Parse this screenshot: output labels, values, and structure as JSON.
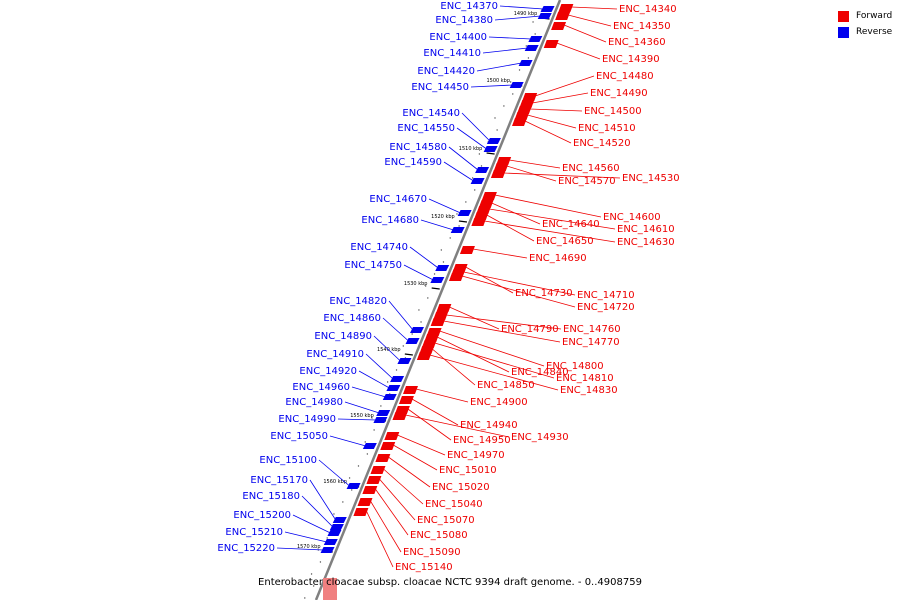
{
  "legend": {
    "forward": {
      "label": "Forward",
      "color": "#ee0000"
    },
    "reverse": {
      "label": "Reverse",
      "color": "#0000ee"
    }
  },
  "caption": "Enterobacter cloacae subsp. cloacae NCTC 9394 draft genome. - 0..4908759",
  "axis": {
    "unit": "kbp",
    "ticks": [
      "1490 kbp",
      "1500 kbp",
      "1510 kbp",
      "1520 kbp",
      "1530 kbp",
      "1540 kbp",
      "1550 kbp",
      "1560 kbp",
      "1570 kbp"
    ]
  },
  "reverse_genes": [
    "ENC_14370",
    "ENC_14380",
    "ENC_14400",
    "ENC_14410",
    "ENC_14420",
    "ENC_14450",
    "ENC_14540",
    "ENC_14550",
    "ENC_14580",
    "ENC_14590",
    "ENC_14670",
    "ENC_14680",
    "ENC_14740",
    "ENC_14750",
    "ENC_14820",
    "ENC_14860",
    "ENC_14890",
    "ENC_14910",
    "ENC_14920",
    "ENC_14960",
    "ENC_14980",
    "ENC_14990",
    "ENC_15050",
    "ENC_15100",
    "ENC_15170",
    "ENC_15180",
    "ENC_15200",
    "ENC_15210",
    "ENC_15220"
  ],
  "forward_genes": [
    "ENC_14340",
    "ENC_14350",
    "ENC_14360",
    "ENC_14390",
    "ENC_14480",
    "ENC_14490",
    "ENC_14500",
    "ENC_14510",
    "ENC_14520",
    "ENC_14560",
    "ENC_14570",
    "ENC_14530",
    "ENC_14600",
    "ENC_14640",
    "ENC_14610",
    "ENC_14650",
    "ENC_14630",
    "ENC_14690",
    "ENC_14730",
    "ENC_14710",
    "ENC_14720",
    "ENC_14790",
    "ENC_14760",
    "ENC_14770",
    "ENC_14800",
    "ENC_14840",
    "ENC_14810",
    "ENC_14850",
    "ENC_14830",
    "ENC_14900",
    "ENC_14940",
    "ENC_14950",
    "ENC_14930",
    "ENC_14970",
    "ENC_15010",
    "ENC_15020",
    "ENC_15040",
    "ENC_15070",
    "ENC_15080",
    "ENC_15090",
    "ENC_15140"
  ]
}
